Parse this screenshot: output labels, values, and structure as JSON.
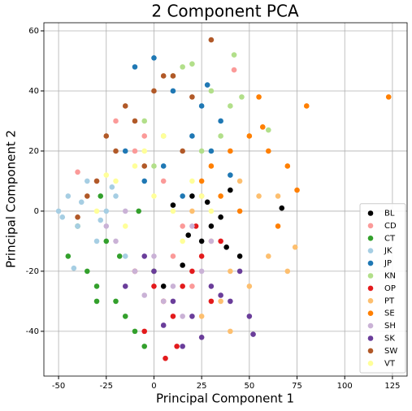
{
  "chart_data": {
    "type": "scatter",
    "title": "2 Component PCA",
    "x_label": "Principal Component 1",
    "y_label": "Principal Component 2",
    "xlim": [
      -57.7,
      132.7
    ],
    "ylim": [
      -54.9,
      62.7
    ],
    "xticks": [
      -50,
      -25,
      0,
      25,
      50,
      75,
      100,
      125
    ],
    "yticks": [
      -40,
      -20,
      0,
      20,
      40,
      60
    ],
    "grid": true,
    "legend": "lower right",
    "series": [
      {
        "name": "BL",
        "color": "#000000",
        "x": [
          20,
          30,
          40,
          10,
          25,
          35,
          18,
          45,
          67,
          5,
          28,
          15,
          38
        ],
        "values": [
          5,
          -5,
          7,
          2,
          -10,
          -2,
          -8,
          -15,
          1,
          -25,
          3,
          -18,
          -12
        ]
      },
      {
        "name": "CD",
        "color": "#fb9a99",
        "x": [
          -40,
          -20,
          -10,
          5,
          15,
          42,
          -30,
          0,
          10,
          25,
          -5,
          20
        ],
        "values": [
          13,
          30,
          20,
          10,
          -5,
          47,
          10,
          -20,
          -15,
          5,
          25,
          -25
        ]
      },
      {
        "name": "CT",
        "color": "#33a02c",
        "x": [
          -45,
          -35,
          -30,
          -25,
          -20,
          -15,
          -10,
          -5,
          0,
          -28,
          -40,
          -18,
          -8,
          -30
        ],
        "values": [
          -15,
          -20,
          -25,
          -10,
          -30,
          -35,
          -40,
          -45,
          -20,
          5,
          -5,
          -15,
          0,
          -30
        ]
      },
      {
        "name": "JK",
        "color": "#a6cee3",
        "x": [
          -50,
          -45,
          -40,
          -35,
          -30,
          -25,
          -20,
          -15,
          -42,
          -38,
          -28,
          -48,
          -22
        ],
        "values": [
          0,
          5,
          -5,
          10,
          -10,
          0,
          5,
          -15,
          -19,
          3,
          -3,
          -2,
          8
        ]
      },
      {
        "name": "JP",
        "color": "#1f78b4",
        "x": [
          -10,
          0,
          10,
          20,
          25,
          30,
          35,
          -5,
          5,
          15,
          -15,
          28,
          40
        ],
        "values": [
          48,
          51,
          40,
          25,
          35,
          20,
          30,
          10,
          15,
          5,
          20,
          42,
          12
        ]
      },
      {
        "name": "KN",
        "color": "#b2df8a",
        "x": [
          10,
          15,
          20,
          30,
          40,
          42,
          46,
          -5,
          5,
          25,
          35,
          60,
          0
        ],
        "values": [
          45,
          48,
          49,
          40,
          35,
          52,
          38,
          30,
          25,
          20,
          25,
          27,
          15
        ]
      },
      {
        "name": "OP",
        "color": "#e31a1c",
        "x": [
          -10,
          0,
          5,
          10,
          15,
          20,
          25,
          30,
          35,
          -5,
          12,
          22,
          6
        ],
        "values": [
          -20,
          -25,
          -30,
          -35,
          -25,
          -20,
          -15,
          -30,
          -10,
          -40,
          -45,
          -5,
          -49
        ]
      },
      {
        "name": "PT",
        "color": "#fdbf6f",
        "x": [
          20,
          30,
          40,
          50,
          60,
          70,
          45,
          55,
          35,
          25,
          65,
          74,
          40
        ],
        "values": [
          0,
          -10,
          -20,
          -25,
          -15,
          -20,
          10,
          5,
          -30,
          -35,
          5,
          -12,
          -40
        ]
      },
      {
        "name": "SE",
        "color": "#ff7f00",
        "x": [
          25,
          30,
          40,
          50,
          55,
          60,
          70,
          80,
          123,
          65,
          45,
          35,
          75,
          57
        ],
        "values": [
          10,
          15,
          20,
          25,
          38,
          20,
          15,
          35,
          38,
          -5,
          0,
          5,
          7,
          28
        ]
      },
      {
        "name": "SH",
        "color": "#cab2d6",
        "x": [
          -20,
          -10,
          0,
          10,
          20,
          -15,
          5,
          15,
          -25,
          25,
          30,
          -5
        ],
        "values": [
          -10,
          -20,
          -15,
          -25,
          -5,
          0,
          -30,
          -35,
          -5,
          -20,
          -10,
          -28
        ]
      },
      {
        "name": "SK",
        "color": "#6a3d9a",
        "x": [
          0,
          10,
          20,
          30,
          40,
          45,
          52,
          -15,
          5,
          15,
          25,
          35,
          50,
          -5
        ],
        "values": [
          -20,
          -30,
          -35,
          -25,
          -30,
          -20,
          -41,
          -25,
          -38,
          -45,
          -42,
          -28,
          -35,
          -15
        ]
      },
      {
        "name": "SW",
        "color": "#b15928",
        "x": [
          -30,
          -20,
          -10,
          0,
          10,
          20,
          30,
          -25,
          -15,
          -5,
          5,
          15,
          -35,
          -40
        ],
        "values": [
          10,
          20,
          30,
          40,
          45,
          38,
          57,
          25,
          35,
          15,
          45,
          20,
          5,
          -2
        ]
      },
      {
        "name": "VT",
        "color": "#ffff99",
        "x": [
          -20,
          -10,
          0,
          10,
          20,
          -30,
          -15,
          -5,
          5,
          15,
          -25,
          25,
          30
        ],
        "values": [
          10,
          15,
          5,
          0,
          10,
          0,
          -5,
          20,
          25,
          -10,
          12,
          5,
          0
        ]
      }
    ]
  }
}
